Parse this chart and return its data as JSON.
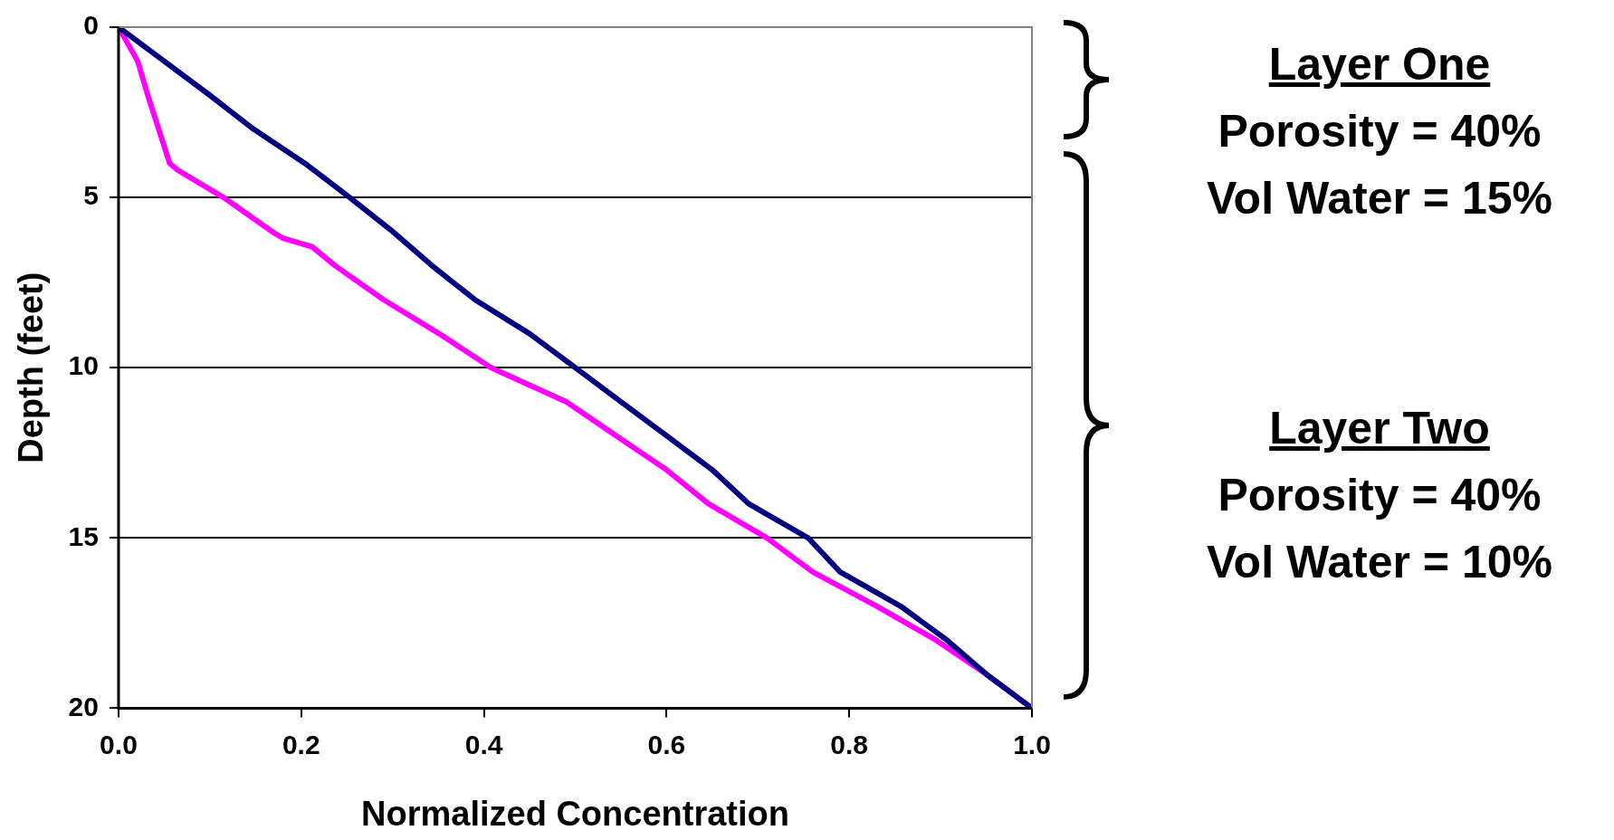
{
  "chart_data": {
    "type": "line",
    "xlabel": "Normalized Concentration",
    "ylabel": "Depth (feet)",
    "series": [
      {
        "color": "#000080",
        "x": [
          0,
          0.05,
          0.1,
          0.148,
          0.204,
          0.253,
          0.3,
          0.343,
          0.39,
          0.45,
          0.5,
          0.55,
          0.6,
          0.65,
          0.69,
          0.755,
          0.79,
          0.856,
          0.907,
          0.95,
          1.0
        ],
        "values": [
          0,
          1,
          2,
          3,
          4,
          5,
          6,
          7,
          8,
          9,
          10,
          11,
          12,
          13,
          14,
          15,
          16,
          17,
          18,
          19,
          20
        ]
      },
      {
        "color": "#ff00ff",
        "x": [
          0,
          0.021,
          0.032,
          0.044,
          0.056,
          0.065,
          0.115,
          0.168,
          0.18,
          0.212,
          0.237,
          0.29,
          0.351,
          0.408,
          0.49,
          0.545,
          0.6,
          0.646,
          0.71,
          0.76,
          0.83,
          0.895,
          0.95,
          1.0
        ],
        "values": [
          0,
          1,
          2,
          3,
          4,
          4.2,
          5,
          6,
          6.2,
          6.45,
          7,
          8,
          9,
          10,
          11,
          12,
          13,
          14,
          15,
          16,
          17,
          18,
          19,
          20
        ]
      }
    ],
    "xlim": [
      0,
      1
    ],
    "xticks": [
      {
        "value": 0,
        "label": "0.0"
      },
      {
        "value": 0.2,
        "label": "0.2"
      },
      {
        "value": 0.4,
        "label": "0.4"
      },
      {
        "value": 0.6,
        "label": "0.6"
      },
      {
        "value": 0.8,
        "label": "0.8"
      },
      {
        "value": 1,
        "label": "1.0"
      }
    ],
    "ylim": [
      20,
      0
    ],
    "yticks": [
      0,
      5,
      10,
      15,
      20
    ],
    "grid": "y",
    "marker": "none",
    "line_style": "solid",
    "annotations": [
      "Layer One",
      "Porosity = 40%",
      "Vol Water = 15%",
      "Layer Two",
      "Porosity = 40%",
      "Vol Water = 10%"
    ]
  }
}
